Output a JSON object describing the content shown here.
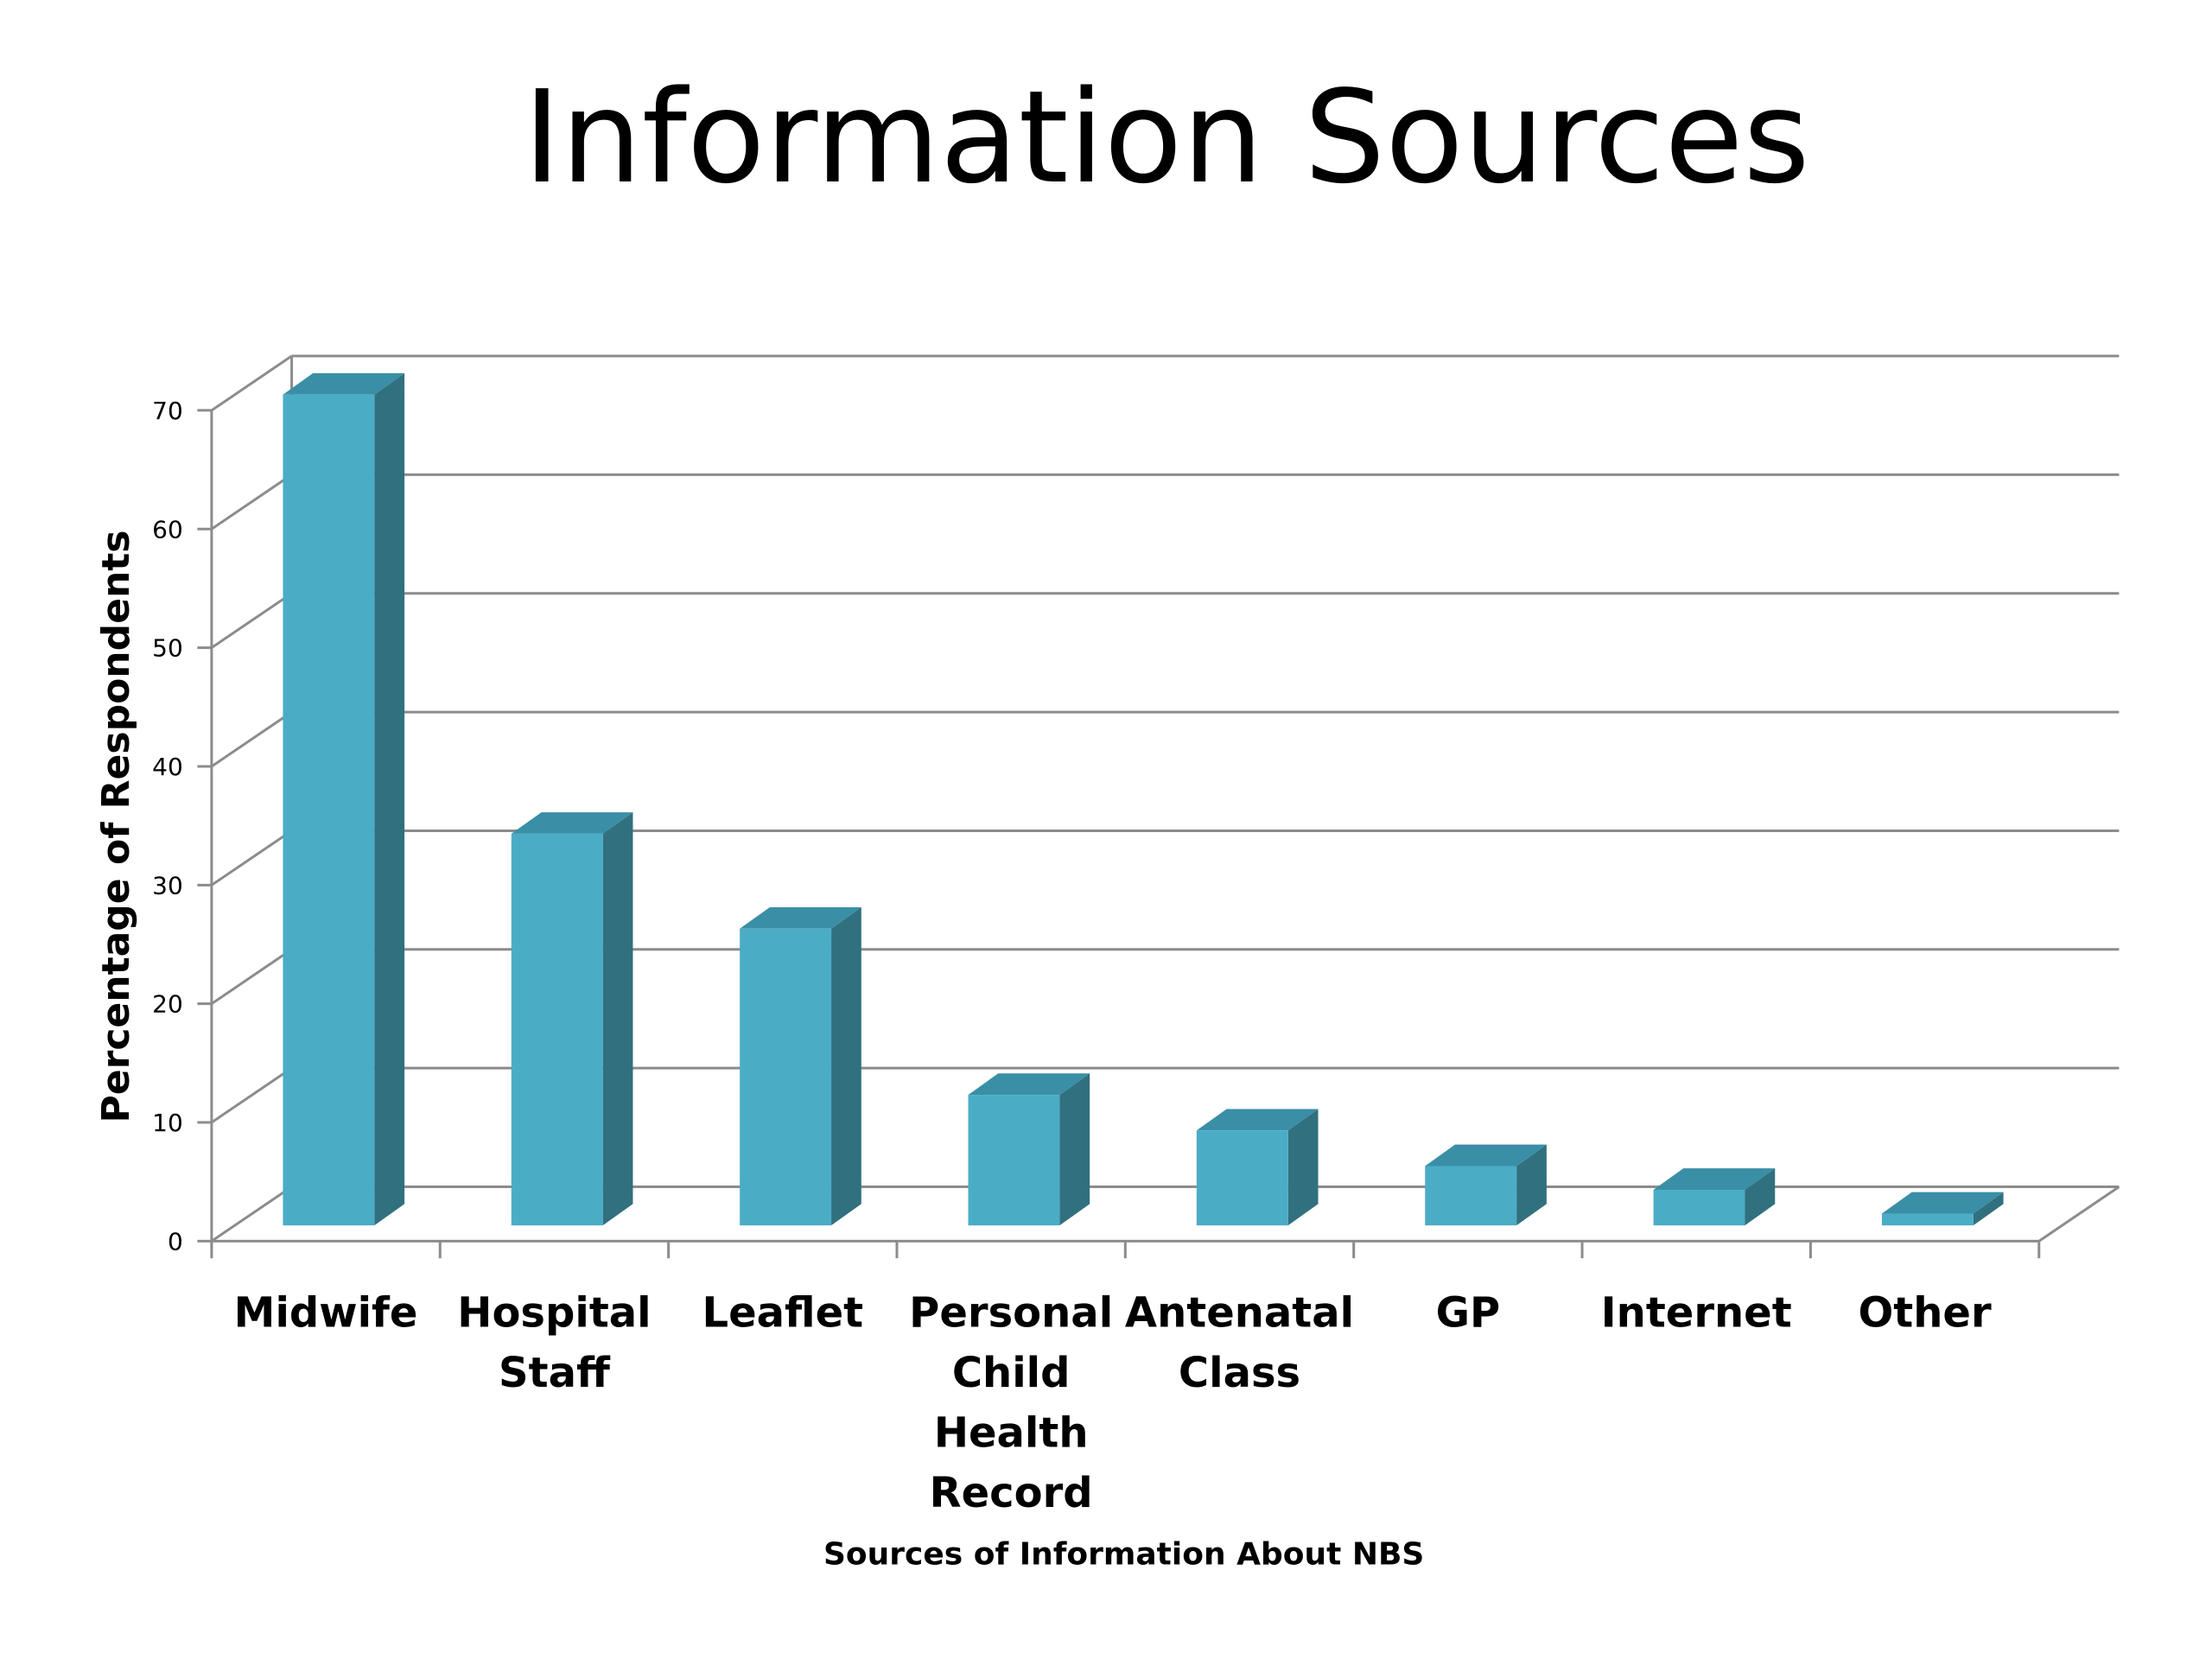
{
  "chart_data": {
    "type": "bar",
    "title": "Information Sources",
    "xlabel": "Sources of Information About NBS",
    "ylabel": "Percentage of Respondents",
    "categories": [
      [
        "Midwife"
      ],
      [
        "Hospital",
        "Staff"
      ],
      [
        "Leaflet"
      ],
      [
        "Personal",
        "Child",
        "Health",
        "Record"
      ],
      [
        "Antenatal",
        "Class"
      ],
      [
        "GP"
      ],
      [
        "Internet"
      ],
      [
        "Other"
      ]
    ],
    "values": [
      70,
      33,
      25,
      11,
      8,
      5,
      3,
      1
    ],
    "ylim": [
      0,
      70
    ],
    "yticks": [
      0,
      10,
      20,
      30,
      40,
      50,
      60,
      70
    ],
    "grid": true,
    "legend": "none",
    "style": "3d-column",
    "colors": {
      "front": "#4bacc6",
      "side": "#31707f",
      "top": "#3a8fa6",
      "grid": "#8c8c8c"
    }
  }
}
